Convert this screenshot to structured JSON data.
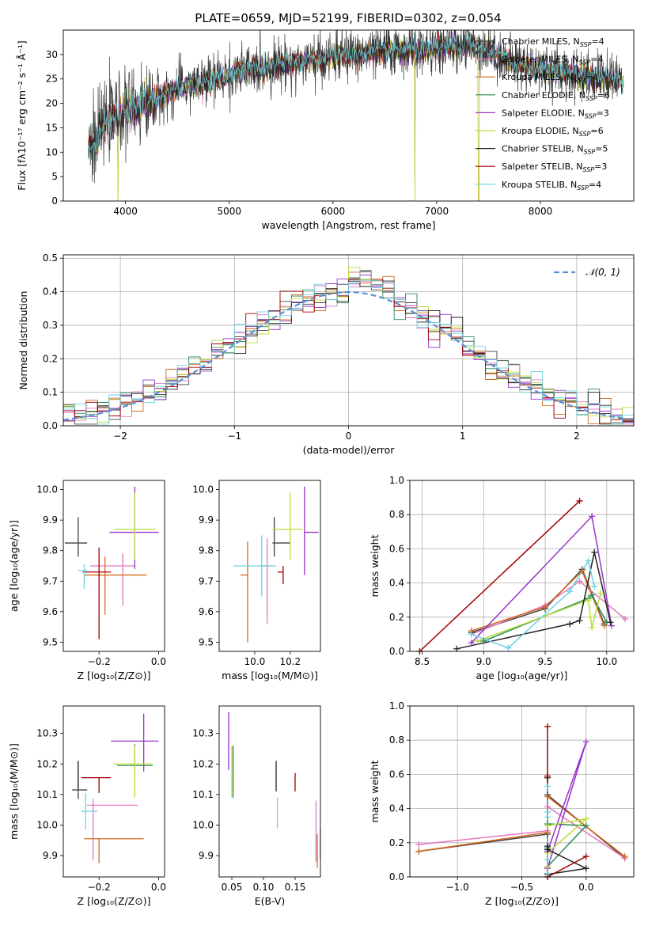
{
  "figure_title": "PLATE=0659, MJD=52199, FIBERID=0302, z=0.054",
  "chart_data": [
    {
      "id": "spectrum",
      "type": "line",
      "title": "PLATE=0659, MJD=52199, FIBERID=0302, z=0.054",
      "xlabel": "wavelength [Angstrom, rest frame]",
      "ylabel": "Flux [fλ10⁻¹⁷ erg cm⁻² s⁻¹ Å⁻¹]",
      "xlim": [
        3400,
        8900
      ],
      "ylim": [
        0,
        35
      ],
      "xticks": [
        4000,
        5000,
        6000,
        7000,
        8000
      ],
      "yticks": [
        0,
        5,
        10,
        15,
        20,
        25,
        30
      ],
      "grid": false,
      "legend": "top-right",
      "continuum": [
        [
          3640,
          11
        ],
        [
          3700,
          11.5
        ],
        [
          3760,
          14.5
        ],
        [
          3840,
          17
        ],
        [
          3920,
          17
        ],
        [
          3980,
          18.5
        ],
        [
          4100,
          19
        ],
        [
          4200,
          20
        ],
        [
          4350,
          21.5
        ],
        [
          4500,
          23
        ],
        [
          4700,
          24
        ],
        [
          4900,
          25
        ],
        [
          5100,
          26.5
        ],
        [
          5300,
          27
        ],
        [
          5500,
          28
        ],
        [
          5700,
          28.5
        ],
        [
          5900,
          29
        ],
        [
          6100,
          30
        ],
        [
          6300,
          30
        ],
        [
          6500,
          30.5
        ],
        [
          6700,
          31
        ],
        [
          6900,
          31
        ],
        [
          7100,
          31.5
        ],
        [
          7300,
          32
        ],
        [
          7500,
          31
        ],
        [
          7700,
          28.5
        ],
        [
          7900,
          27.5
        ],
        [
          8100,
          26.5
        ],
        [
          8300,
          26
        ],
        [
          8500,
          25.5
        ],
        [
          8700,
          25
        ],
        [
          8800,
          24.5
        ]
      ],
      "series": [
        {
          "name": "Chabrier MILES, N_SSP=4",
          "label_main": "Chabrier MILES, N",
          "label_end": "=4",
          "color": "#404040"
        },
        {
          "name": "Salpeter MILES, N_SSP=4",
          "label_main": "Salpeter MILES, N",
          "label_end": "=4",
          "color": "#e377c2"
        },
        {
          "name": "Kroupa MILES, N_SSP=4",
          "label_main": "Kroupa MILES, N",
          "label_end": "=4",
          "color": "#d2691e"
        },
        {
          "name": "Chabrier ELODIE, N_SSP=6",
          "label_main": "Chabrier ELODIE, N",
          "label_end": "=6",
          "color": "#2e8b57"
        },
        {
          "name": "Salpeter ELODIE, N_SSP=3",
          "label_main": "Salpeter ELODIE, N",
          "label_end": "=3",
          "color": "#9932cc"
        },
        {
          "name": "Kroupa ELODIE, N_SSP=6",
          "label_main": "Kroupa ELODIE, N",
          "label_end": "=6",
          "color": "#bcdc3a"
        },
        {
          "name": "Chabrier STELIB, N_SSP=5",
          "label_main": "Chabrier STELIB, N",
          "label_end": "=5",
          "color": "#222222"
        },
        {
          "name": "Salpeter STELIB, N_SSP=3",
          "label_main": "Salpeter STELIB, N",
          "label_end": "=3",
          "color": "#a00000"
        },
        {
          "name": "Kroupa STELIB, N_SSP=4",
          "label_main": "Kroupa STELIB, N",
          "label_end": "=4",
          "color": "#6fd3e0"
        }
      ],
      "legend_subscript": "SSP",
      "dips": [
        {
          "x": 3930,
          "ymin": 0
        },
        {
          "x": 6790,
          "ymin": 0
        },
        {
          "x": 7405,
          "ymin": 0
        }
      ]
    },
    {
      "id": "residuals",
      "type": "bar",
      "xlabel": "(data-model)/error",
      "ylabel": "Normed distribution",
      "xlim": [
        -2.5,
        2.5
      ],
      "ylim": [
        0,
        0.51
      ],
      "xticks": [
        -2,
        -1,
        0,
        1,
        2
      ],
      "yticks": [
        0.0,
        0.1,
        0.2,
        0.3,
        0.4,
        0.5
      ],
      "grid": true,
      "legend": "top-right",
      "gaussian_label": "𝒩(0, 1)",
      "bin_width": 0.1,
      "bin_start": -2.5
    },
    {
      "id": "age_vs_Z",
      "type": "scatter",
      "xlabel": "Z [log₁₀(Z/Z⊙)]",
      "ylabel": "age  [log₁₀(age/yr)]",
      "xlim": [
        -0.32,
        0.02
      ],
      "ylim": [
        9.47,
        10.03
      ],
      "xticks": [
        -0.2,
        0.0
      ],
      "yticks": [
        9.5,
        9.6,
        9.7,
        9.8,
        9.9,
        10.0
      ],
      "points": [
        {
          "x": -0.27,
          "y": 9.825,
          "xerr": [
            0.045,
            0.03
          ],
          "yerr": [
            0.045,
            0.085
          ],
          "c": 0
        },
        {
          "x": -0.12,
          "y": 9.75,
          "xerr": [
            0.11,
            0.04
          ],
          "yerr": [
            0.13,
            0.04
          ],
          "c": 1
        },
        {
          "x": -0.18,
          "y": 9.72,
          "xerr": [
            0.07,
            0.14
          ],
          "yerr": [
            0.13,
            0.06
          ],
          "c": 2
        },
        {
          "x": -0.08,
          "y": 9.86,
          "xerr": [
            0.085,
            0.08
          ],
          "yerr": [
            0.12,
            0.15
          ],
          "c": 4
        },
        {
          "x": -0.08,
          "y": 9.87,
          "xerr": [
            0.07,
            0.07
          ],
          "yerr": [
            0.1,
            0.12
          ],
          "c": 5
        },
        {
          "x": -0.2,
          "y": 9.73,
          "xerr": [
            0.055,
            0.04
          ],
          "yerr": [
            0.22,
            0.08
          ],
          "c": 7
        },
        {
          "x": -0.25,
          "y": 9.735,
          "xerr": [
            0.02,
            0.01
          ],
          "yerr": [
            0.06,
            0.02
          ],
          "c": 8
        }
      ]
    },
    {
      "id": "age_vs_mass",
      "type": "scatter",
      "xlabel": "mass [log₁₀(M/M⊙)]",
      "ylabel": "",
      "xlim": [
        9.8,
        10.37
      ],
      "ylim": [
        9.47,
        10.03
      ],
      "xticks": [
        10.0,
        10.2
      ],
      "yticks": [
        9.5,
        9.6,
        9.7,
        9.8,
        9.9,
        10.0
      ],
      "points": [
        {
          "x": 10.11,
          "y": 9.825,
          "xerr": [
            0.01,
            0.09
          ],
          "yerr": [
            0.045,
            0.085
          ],
          "c": 0
        },
        {
          "x": 10.07,
          "y": 9.75,
          "xerr": [
            0.03,
            0.03
          ],
          "yerr": [
            0.19,
            0.09
          ],
          "c": 1
        },
        {
          "x": 9.96,
          "y": 9.72,
          "xerr": [
            0.04,
            0.0
          ],
          "yerr": [
            0.22,
            0.11
          ],
          "c": 2
        },
        {
          "x": 10.28,
          "y": 9.86,
          "xerr": [
            0.0,
            0.08
          ],
          "yerr": [
            0.14,
            0.15
          ],
          "c": 4
        },
        {
          "x": 10.2,
          "y": 9.87,
          "xerr": [
            0.1,
            0.07
          ],
          "yerr": [
            0.1,
            0.12
          ],
          "c": 5
        },
        {
          "x": 10.16,
          "y": 9.73,
          "xerr": [
            0.03,
            0.0
          ],
          "yerr": [
            0.04,
            0.02
          ],
          "c": 7
        },
        {
          "x": 10.04,
          "y": 9.75,
          "xerr": [
            0.16,
            0.08
          ],
          "yerr": [
            0.1,
            0.1
          ],
          "c": 8
        }
      ]
    },
    {
      "id": "massweight_vs_age",
      "type": "line",
      "xlabel": "age  [log₁₀(age/yr)]",
      "ylabel": "mass weight",
      "xlim": [
        8.4,
        10.22
      ],
      "ylim": [
        0.0,
        1.0
      ],
      "xticks": [
        8.5,
        9.0,
        9.5,
        10.0
      ],
      "yticks": [
        0.0,
        0.2,
        0.4,
        0.6,
        0.8,
        1.0
      ],
      "grid": true,
      "series": [
        {
          "c": 0,
          "x": [
            8.9,
            9.5,
            9.8,
            9.98
          ],
          "y": [
            0.11,
            0.25,
            0.48,
            0.16
          ]
        },
        {
          "c": 1,
          "x": [
            8.9,
            9.5,
            9.78,
            10.15
          ],
          "y": [
            0.1,
            0.27,
            0.41,
            0.19
          ]
        },
        {
          "c": 2,
          "x": [
            8.9,
            9.5,
            9.8,
            9.98
          ],
          "y": [
            0.12,
            0.26,
            0.47,
            0.15
          ]
        },
        {
          "c": 3,
          "x": [
            9.0,
            9.85,
            9.88,
            10.0
          ],
          "y": [
            0.06,
            0.31,
            0.33,
            0.17
          ]
        },
        {
          "c": 4,
          "x": [
            8.9,
            9.88,
            10.04
          ],
          "y": [
            0.05,
            0.79,
            0.15
          ]
        },
        {
          "c": 5,
          "x": [
            8.95,
            9.85,
            9.88,
            9.95
          ],
          "y": [
            0.06,
            0.3,
            0.14,
            0.34
          ]
        },
        {
          "c": 6,
          "x": [
            8.78,
            9.7,
            9.78,
            9.9,
            10.03
          ],
          "y": [
            0.015,
            0.16,
            0.18,
            0.58,
            0.17
          ]
        },
        {
          "c": 7,
          "x": [
            8.48,
            9.78
          ],
          "y": [
            0.0,
            0.88
          ]
        },
        {
          "c": 8,
          "x": [
            8.9,
            9.2,
            9.7,
            9.85,
            9.9
          ],
          "y": [
            0.1,
            0.02,
            0.35,
            0.53,
            0.38
          ]
        }
      ]
    },
    {
      "id": "mass_vs_Z",
      "type": "scatter",
      "xlabel": "Z [log₁₀(Z/Z⊙)]",
      "ylabel": "mass [log₁₀(M/M⊙)]",
      "xlim": [
        -0.32,
        0.02
      ],
      "ylim": [
        9.83,
        10.39
      ],
      "xticks": [
        -0.2,
        0.0
      ],
      "yticks": [
        9.9,
        10.0,
        10.1,
        10.2,
        10.3
      ],
      "points": [
        {
          "x": -0.27,
          "y": 10.115,
          "xerr": [
            0.02,
            0.03
          ],
          "yerr": [
            0.03,
            0.095
          ],
          "c": 0
        },
        {
          "x": -0.22,
          "y": 10.065,
          "xerr": [
            0.02,
            0.15
          ],
          "yerr": [
            0.18,
            0.02
          ],
          "c": 1
        },
        {
          "x": -0.2,
          "y": 9.955,
          "xerr": [
            0.05,
            0.15
          ],
          "yerr": [
            0.08,
            0.0
          ],
          "c": 2
        },
        {
          "x": -0.08,
          "y": 10.195,
          "xerr": [
            0.06,
            0.06
          ],
          "yerr": [
            0.02,
            0.07
          ],
          "c": 3
        },
        {
          "x": -0.05,
          "y": 10.275,
          "xerr": [
            0.11,
            0.05
          ],
          "yerr": [
            0.1,
            0.09
          ],
          "c": 4
        },
        {
          "x": -0.08,
          "y": 10.2,
          "xerr": [
            0.07,
            0.06
          ],
          "yerr": [
            0.11,
            0.06
          ],
          "c": 5
        },
        {
          "x": -0.27,
          "y": 10.12,
          "xerr": [
            0.0,
            0.0
          ],
          "yerr": [
            0.0,
            0.09
          ],
          "c": 6
        },
        {
          "x": -0.2,
          "y": 10.155,
          "xerr": [
            0.06,
            0.04
          ],
          "yerr": [
            0.05,
            0.0
          ],
          "c": 7
        },
        {
          "x": -0.245,
          "y": 10.045,
          "xerr": [
            0.015,
            0.04
          ],
          "yerr": [
            0.06,
            0.06
          ],
          "c": 8
        }
      ]
    },
    {
      "id": "mass_vs_ebv",
      "type": "scatter",
      "xlabel": "E(B-V)",
      "ylabel": "",
      "xlim": [
        0.03,
        0.19
      ],
      "ylim": [
        9.83,
        10.39
      ],
      "xticks": [
        0.05,
        0.1,
        0.15
      ],
      "yticks": [
        9.9,
        10.0,
        10.1,
        10.2,
        10.3
      ],
      "points": [
        {
          "x": 0.185,
          "y": 9.9,
          "xerr": [
            0,
            0
          ],
          "yerr": [
            0.04,
            0.07
          ],
          "c": 2
        },
        {
          "x": 0.183,
          "y": 10.0,
          "xerr": [
            0,
            0
          ],
          "yerr": [
            0.12,
            0.08
          ],
          "c": 1
        },
        {
          "x": 0.045,
          "y": 10.27,
          "xerr": [
            0,
            0
          ],
          "yerr": [
            0.09,
            0.1
          ],
          "c": 4
        },
        {
          "x": 0.05,
          "y": 10.17,
          "xerr": [
            0,
            0
          ],
          "yerr": [
            0.08,
            0.09
          ],
          "c": 5
        },
        {
          "x": 0.052,
          "y": 10.18,
          "xerr": [
            0,
            0
          ],
          "yerr": [
            0.09,
            0.08
          ],
          "c": 3
        },
        {
          "x": 0.12,
          "y": 10.14,
          "xerr": [
            0,
            0
          ],
          "yerr": [
            0.03,
            0.07
          ],
          "c": 6
        },
        {
          "x": 0.122,
          "y": 10.03,
          "xerr": [
            0,
            0
          ],
          "yerr": [
            0.04,
            0.06
          ],
          "c": 8
        },
        {
          "x": 0.15,
          "y": 10.14,
          "xerr": [
            0,
            0
          ],
          "yerr": [
            0.03,
            0.03
          ],
          "c": 7
        },
        {
          "x": 0.19,
          "y": 9.92,
          "xerr": [
            0,
            0
          ],
          "yerr": [
            0.03,
            0.07
          ],
          "c": 0
        }
      ]
    },
    {
      "id": "massweight_vs_Z",
      "type": "line",
      "xlabel": "Z [log₁₀(Z/Z⊙)]",
      "ylabel": "mass weight",
      "xlim": [
        -1.37,
        0.37
      ],
      "ylim": [
        0.0,
        1.0
      ],
      "xticks": [
        -1.0,
        -0.5,
        0.0
      ],
      "yticks": [
        0.0,
        0.2,
        0.4,
        0.6,
        0.8,
        1.0
      ],
      "grid": true,
      "series": [
        {
          "c": 0,
          "x": [
            -1.3,
            -0.3,
            -0.3,
            0.3
          ],
          "y": [
            0.15,
            0.25,
            0.48,
            0.11
          ]
        },
        {
          "c": 1,
          "x": [
            -1.3,
            -0.3,
            -0.3,
            0.3
          ],
          "y": [
            0.19,
            0.27,
            0.41,
            0.11
          ]
        },
        {
          "c": 2,
          "x": [
            -1.3,
            -0.3,
            -0.3,
            0.3
          ],
          "y": [
            0.15,
            0.26,
            0.47,
            0.12
          ]
        },
        {
          "c": 3,
          "x": [
            -0.3,
            -0.3,
            0.0,
            -0.3
          ],
          "y": [
            0.17,
            0.06,
            0.3,
            0.31
          ]
        },
        {
          "c": 4,
          "x": [
            -0.3,
            0.0,
            -0.3
          ],
          "y": [
            0.05,
            0.79,
            0.15
          ]
        },
        {
          "c": 5,
          "x": [
            -0.3,
            0.0,
            -0.3,
            -0.3
          ],
          "y": [
            0.14,
            0.34,
            0.3,
            0.06
          ]
        },
        {
          "c": 6,
          "x": [
            -0.3,
            0.0,
            -0.3,
            -0.3,
            -0.3
          ],
          "y": [
            0.015,
            0.05,
            0.16,
            0.18,
            0.58
          ]
        },
        {
          "c": 7,
          "x": [
            -0.3,
            -0.3,
            -0.3,
            0.0,
            -0.3
          ],
          "y": [
            0.88,
            0.59,
            0.0,
            0.12,
            0.0
          ]
        },
        {
          "c": 8,
          "x": [
            -0.3,
            -0.3,
            -0.3,
            -0.3,
            -0.3
          ],
          "y": [
            0.1,
            0.02,
            0.35,
            0.53,
            0.38
          ]
        }
      ]
    }
  ]
}
